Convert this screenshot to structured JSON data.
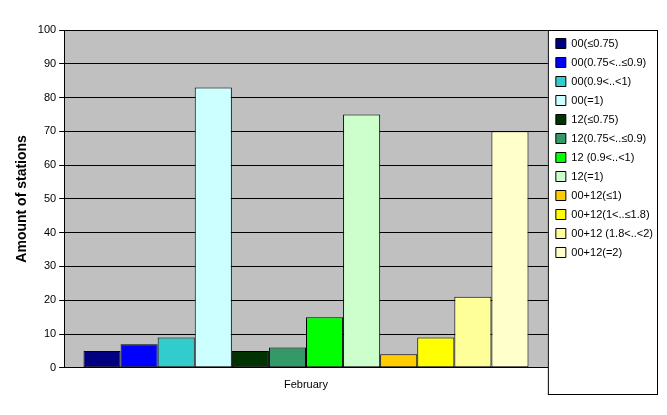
{
  "chart_data": {
    "type": "bar",
    "y_label": "Amount of stations",
    "categories": [
      "February"
    ],
    "series": [
      {
        "name": "00(≤0.75)",
        "color": "#000080",
        "values": [
          5
        ]
      },
      {
        "name": "00(0.75<..≤0.9)",
        "color": "#0000ff",
        "values": [
          7
        ]
      },
      {
        "name": "00(0.9<..<1)",
        "color": "#33cccc",
        "values": [
          9
        ]
      },
      {
        "name": "00(=1)",
        "color": "#ccffff",
        "values": [
          83
        ]
      },
      {
        "name": "12(≤0.75)",
        "color": "#003300",
        "values": [
          5
        ]
      },
      {
        "name": "12(0.75<..≤0.9)",
        "color": "#339966",
        "values": [
          6
        ]
      },
      {
        "name": "12 (0.9<..<1)",
        "color": "#00ff00",
        "values": [
          15
        ]
      },
      {
        "name": "12(=1)",
        "color": "#ccffcc",
        "values": [
          75
        ]
      },
      {
        "name": "00+12(≤1)",
        "color": "#ffcc00",
        "values": [
          4
        ]
      },
      {
        "name": "00+12(1<..≤1.8)",
        "color": "#ffff00",
        "values": [
          9
        ]
      },
      {
        "name": "00+12 (1.8<..<2)",
        "color": "#ffff99",
        "values": [
          21
        ]
      },
      {
        "name": "00+12(=2)",
        "color": "#ffffcc",
        "values": [
          70
        ]
      }
    ],
    "ylim": [
      0,
      100
    ],
    "yticks": [
      0,
      10,
      20,
      30,
      40,
      50,
      60,
      70,
      80,
      90,
      100
    ],
    "grid": true,
    "legend": "right"
  }
}
